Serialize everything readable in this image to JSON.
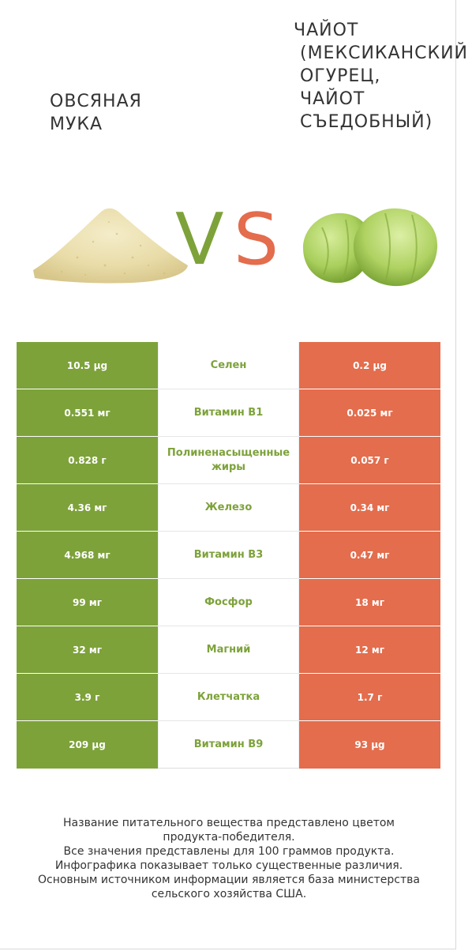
{
  "left_food": {
    "name": "Овсяная\nмука",
    "color": "#7da23a",
    "image": "oat-flour-pile"
  },
  "right_food": {
    "name": "Чайот\n (мексиканский\n огурец,\n чайот\n съедобный)",
    "color": "#e36d4d",
    "image": "chayote-fruit"
  },
  "vs": {
    "v": "V",
    "s": "S"
  },
  "nutrients": [
    {
      "name": "Селен",
      "left": "10.5 µg",
      "right": "0.2 µg"
    },
    {
      "name": "Витамин B1",
      "left": "0.551 мг",
      "right": "0.025 мг"
    },
    {
      "name": "Полиненасыщенные жиры",
      "left": "0.828 г",
      "right": "0.057 г"
    },
    {
      "name": "Железо",
      "left": "4.36 мг",
      "right": "0.34 мг"
    },
    {
      "name": "Витамин B3",
      "left": "4.968 мг",
      "right": "0.47 мг"
    },
    {
      "name": "Фосфор",
      "left": "99 мг",
      "right": "18 мг"
    },
    {
      "name": "Магний",
      "left": "32 мг",
      "right": "12 мг"
    },
    {
      "name": "Клетчатка",
      "left": "3.9 г",
      "right": "1.7 г"
    },
    {
      "name": "Витамин B9",
      "left": "209 µg",
      "right": "93 µg"
    }
  ],
  "footer": {
    "line1": "Название питательного вещества представлено цветом",
    "line2": "продукта-победителя.",
    "line3": "Все значения представлены для 100 граммов продукта.",
    "line4": "Инфографика показывает только существенные различия.",
    "line5": "Основным источником информации является база министерства",
    "line6": "сельского хозяйства США."
  }
}
